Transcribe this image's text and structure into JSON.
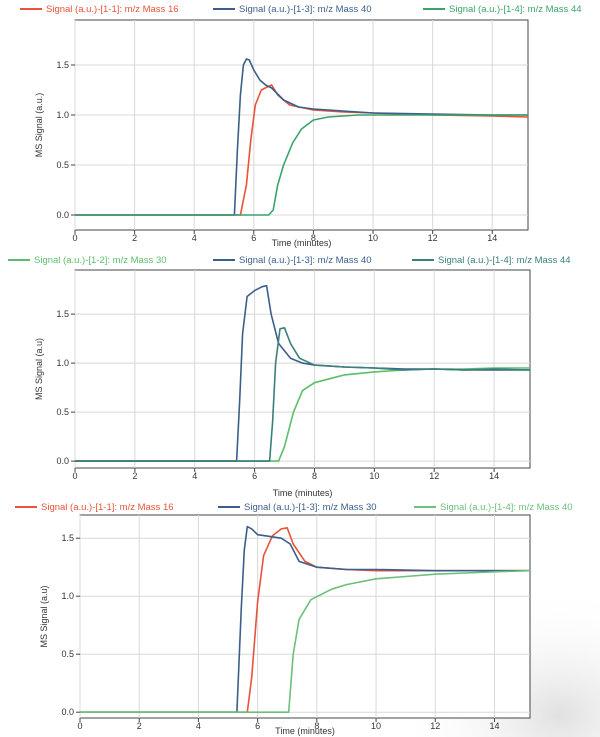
{
  "chart_data": [
    {
      "type": "line",
      "xlabel": "Time (minutes)",
      "ylabel": "MS Signal (a.u.)",
      "xlim": [
        0,
        15.2
      ],
      "ylim": [
        -0.15,
        1.95
      ],
      "x_ticks": [
        "0",
        "2",
        "4",
        "6",
        "8",
        "10",
        "12",
        "14"
      ],
      "y_ticks": [
        "0.0",
        "0.5",
        "1.0",
        "1.5"
      ],
      "grid": true,
      "legend": "top",
      "series": [
        {
          "name": "Signal (a.u.)-[1-1]: m/z Mass 16",
          "color": "#e8533a",
          "points": [
            [
              0,
              0.0
            ],
            [
              5.55,
              0.0
            ],
            [
              5.75,
              0.3
            ],
            [
              5.9,
              0.75
            ],
            [
              6.05,
              1.1
            ],
            [
              6.25,
              1.25
            ],
            [
              6.45,
              1.28
            ],
            [
              6.6,
              1.3
            ],
            [
              6.8,
              1.2
            ],
            [
              7.2,
              1.1
            ],
            [
              8,
              1.05
            ],
            [
              9,
              1.03
            ],
            [
              10,
              1.02
            ],
            [
              12,
              1.0
            ],
            [
              14,
              0.99
            ],
            [
              15.2,
              0.98
            ]
          ]
        },
        {
          "name": "Signal (a.u.)-[1-3]: m/z Mass 40",
          "color": "#3b5f8a",
          "points": [
            [
              0,
              0.0
            ],
            [
              5.35,
              0.0
            ],
            [
              5.45,
              0.65
            ],
            [
              5.55,
              1.2
            ],
            [
              5.65,
              1.5
            ],
            [
              5.75,
              1.56
            ],
            [
              5.85,
              1.55
            ],
            [
              6.0,
              1.45
            ],
            [
              6.2,
              1.35
            ],
            [
              6.4,
              1.3
            ],
            [
              6.6,
              1.27
            ],
            [
              7,
              1.15
            ],
            [
              7.5,
              1.08
            ],
            [
              8,
              1.06
            ],
            [
              9,
              1.04
            ],
            [
              10,
              1.02
            ],
            [
              12,
              1.01
            ],
            [
              14,
              1.0
            ],
            [
              15.2,
              1.0
            ]
          ]
        },
        {
          "name": "Signal (a.u.)-[1-4]: m/z Mass 44",
          "color": "#3aa36a",
          "points": [
            [
              0,
              0.0
            ],
            [
              6.5,
              0.0
            ],
            [
              6.65,
              0.05
            ],
            [
              6.8,
              0.3
            ],
            [
              7.0,
              0.5
            ],
            [
              7.3,
              0.72
            ],
            [
              7.6,
              0.86
            ],
            [
              8,
              0.95
            ],
            [
              8.5,
              0.98
            ],
            [
              9,
              0.99
            ],
            [
              9.5,
              1.0
            ],
            [
              10,
              1.0
            ],
            [
              12,
              1.0
            ],
            [
              14,
              1.0
            ],
            [
              15.2,
              1.0
            ]
          ]
        }
      ]
    },
    {
      "type": "line",
      "xlabel": "Time (minutes)",
      "ylabel": "MS Signal (a.u)",
      "xlim": [
        0,
        15.2
      ],
      "ylim": [
        -0.07,
        1.95
      ],
      "x_ticks": [
        "0",
        "2",
        "4",
        "6",
        "8",
        "10",
        "12",
        "14"
      ],
      "y_ticks": [
        "0.0",
        "0.5",
        "1.0",
        "1.5"
      ],
      "grid": true,
      "legend": "top",
      "series": [
        {
          "name": "Signal (a.u.)-[1-2]: m/z Mass 30",
          "color": "#5bbf6a",
          "points": [
            [
              0,
              0.0
            ],
            [
              6.8,
              0.0
            ],
            [
              7.0,
              0.15
            ],
            [
              7.3,
              0.5
            ],
            [
              7.6,
              0.72
            ],
            [
              8,
              0.8
            ],
            [
              8.5,
              0.84
            ],
            [
              9,
              0.88
            ],
            [
              10,
              0.91
            ],
            [
              11,
              0.93
            ],
            [
              12,
              0.94
            ],
            [
              13,
              0.94
            ],
            [
              14,
              0.95
            ],
            [
              15.2,
              0.95
            ]
          ]
        },
        {
          "name": "Signal (a.u.)-[1-3]: m/z Mass 40",
          "color": "#3b5f8a",
          "points": [
            [
              0,
              0.0
            ],
            [
              5.4,
              0.0
            ],
            [
              5.5,
              0.6
            ],
            [
              5.6,
              1.3
            ],
            [
              5.75,
              1.68
            ],
            [
              6.0,
              1.74
            ],
            [
              6.25,
              1.78
            ],
            [
              6.4,
              1.79
            ],
            [
              6.55,
              1.5
            ],
            [
              6.8,
              1.2
            ],
            [
              7.2,
              1.05
            ],
            [
              7.6,
              1.0
            ],
            [
              8,
              0.98
            ],
            [
              9,
              0.96
            ],
            [
              10,
              0.95
            ],
            [
              11,
              0.94
            ],
            [
              12,
              0.94
            ],
            [
              13,
              0.93
            ],
            [
              14,
              0.93
            ],
            [
              15.2,
              0.93
            ]
          ]
        },
        {
          "name": "Signal (a.u.)-[1-4]: m/z Mass 44",
          "color": "#3a7f7a",
          "points": [
            [
              0,
              0.0
            ],
            [
              6.5,
              0.0
            ],
            [
              6.6,
              0.4
            ],
            [
              6.7,
              1.0
            ],
            [
              6.85,
              1.35
            ],
            [
              7.0,
              1.36
            ],
            [
              7.2,
              1.2
            ],
            [
              7.5,
              1.05
            ],
            [
              8,
              0.98
            ],
            [
              9,
              0.96
            ],
            [
              10,
              0.95
            ],
            [
              11,
              0.93
            ],
            [
              12,
              0.94
            ],
            [
              13,
              0.93
            ],
            [
              14,
              0.94
            ],
            [
              15.2,
              0.93
            ]
          ]
        }
      ]
    },
    {
      "type": "line",
      "xlabel": "Time (minutes)",
      "ylabel": "MS Signal (a.u)",
      "xlim": [
        0,
        15.2
      ],
      "ylim": [
        -0.05,
        1.7
      ],
      "x_ticks": [
        "0",
        "2",
        "4",
        "6",
        "8",
        "10",
        "12",
        "14"
      ],
      "y_ticks": [
        "0.0",
        "0.5",
        "1.0",
        "1.5"
      ],
      "grid": true,
      "legend": "top",
      "series": [
        {
          "name": "Signal (a.u.)-[1-1]: m/z Mass 16",
          "color": "#e8533a",
          "points": [
            [
              0,
              0.0
            ],
            [
              5.65,
              0.0
            ],
            [
              5.8,
              0.3
            ],
            [
              6.0,
              0.95
            ],
            [
              6.2,
              1.35
            ],
            [
              6.5,
              1.52
            ],
            [
              6.8,
              1.58
            ],
            [
              7.0,
              1.59
            ],
            [
              7.2,
              1.45
            ],
            [
              7.6,
              1.3
            ],
            [
              8,
              1.25
            ],
            [
              9,
              1.23
            ],
            [
              10,
              1.22
            ],
            [
              12,
              1.22
            ],
            [
              14,
              1.22
            ],
            [
              15.2,
              1.22
            ]
          ]
        },
        {
          "name": "Signal (a.u.)-[1-3]: m/z Mass 30",
          "color": "#3b5f8a",
          "points": [
            [
              0,
              0.0
            ],
            [
              5.3,
              0.0
            ],
            [
              5.45,
              0.9
            ],
            [
              5.55,
              1.4
            ],
            [
              5.65,
              1.6
            ],
            [
              5.8,
              1.58
            ],
            [
              6.0,
              1.53
            ],
            [
              6.3,
              1.52
            ],
            [
              6.8,
              1.5
            ],
            [
              7.1,
              1.45
            ],
            [
              7.4,
              1.3
            ],
            [
              8,
              1.25
            ],
            [
              9,
              1.23
            ],
            [
              10,
              1.23
            ],
            [
              12,
              1.22
            ],
            [
              14,
              1.22
            ],
            [
              15.2,
              1.22
            ]
          ]
        },
        {
          "name": "Signal (a.u.)-[1-4]: m/z Mass 40",
          "color": "#6cbf7c",
          "points": [
            [
              0,
              0.0
            ],
            [
              7.05,
              0.0
            ],
            [
              7.2,
              0.5
            ],
            [
              7.4,
              0.8
            ],
            [
              7.8,
              0.97
            ],
            [
              8.5,
              1.06
            ],
            [
              9,
              1.1
            ],
            [
              10,
              1.15
            ],
            [
              11,
              1.17
            ],
            [
              12,
              1.19
            ],
            [
              13,
              1.2
            ],
            [
              14,
              1.21
            ],
            [
              15.2,
              1.22
            ]
          ]
        }
      ]
    }
  ]
}
